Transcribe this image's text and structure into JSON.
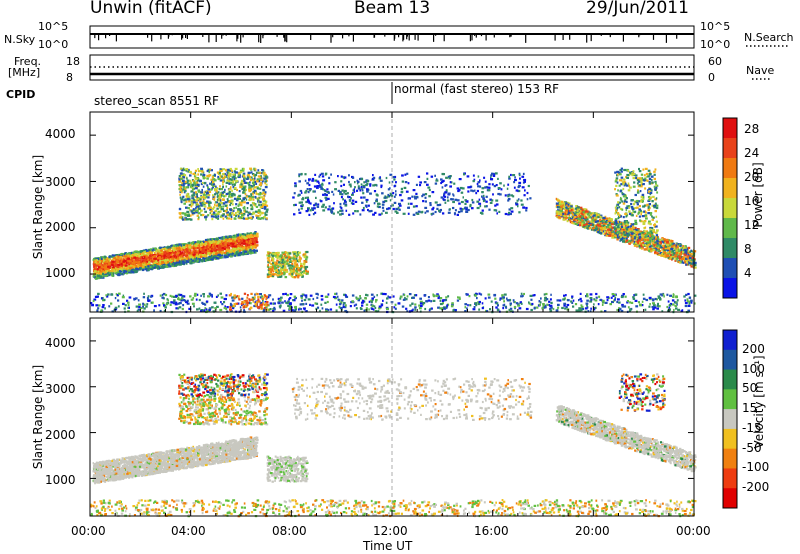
{
  "header": {
    "station": "Unwin (fitACF)",
    "beam": "Beam 13",
    "date": "29/Jun/2011"
  },
  "strips": {
    "nsky_label": "N.Sky",
    "nsky_ticks": [
      "10^5",
      "10^0"
    ],
    "nsearch_label": "N.Search",
    "nsearch_ticks": [
      "10^5",
      "10^0"
    ],
    "freq_label": "Freq.",
    "freq_unit": "[MHz]",
    "freq_ticks": [
      "18",
      "8"
    ],
    "nave_label": "Nave",
    "nave_ticks": [
      "60",
      "0"
    ],
    "cpid_label": "CPID",
    "cpid_segments": [
      {
        "name": "stereo_scan 8551 RF",
        "start_hour": 0
      },
      {
        "name": "normal (fast stereo) 153 RF",
        "start_hour": 12
      }
    ]
  },
  "chart_data": [
    {
      "type": "heatmap",
      "panel": "power",
      "ylabel": "Slant Range [km]",
      "xlabel": "Time UT",
      "x_range_hours": [
        0,
        24
      ],
      "ylim": [
        180,
        4500
      ],
      "y_ticks": [
        1000,
        2000,
        3000,
        4000
      ],
      "x_ticks": [
        "00:00",
        "04:00",
        "08:00",
        "12:00",
        "16:00",
        "20:00",
        "00:00"
      ],
      "colorbar": {
        "label": "Power [dB]",
        "ticks": [
          4,
          8,
          12,
          16,
          20,
          24,
          28
        ],
        "range": [
          0,
          30
        ],
        "colors": [
          "#0a14e6",
          "#1f4fb4",
          "#2f8a66",
          "#5fb84a",
          "#c8d83a",
          "#f0b21e",
          "#ef7a12",
          "#e8421a",
          "#e01010"
        ]
      },
      "regions": [
        {
          "name": "lower band",
          "hours": [
            0.2,
            6.5
          ],
          "range_km": [
            900,
            2000
          ]
        },
        {
          "name": "upper patches",
          "hours": [
            3.5,
            7.0
          ],
          "range_km": [
            2300,
            3300
          ]
        },
        {
          "name": "midday clutter",
          "hours": [
            8.0,
            17.5
          ],
          "range_km": [
            2300,
            3100
          ]
        },
        {
          "name": "evening band",
          "hours": [
            18.5,
            24.0
          ],
          "range_km": [
            1000,
            2500
          ]
        },
        {
          "name": "ground scatter",
          "hours": [
            7.0,
            8.6
          ],
          "range_km": [
            900,
            1500
          ]
        }
      ]
    },
    {
      "type": "heatmap",
      "panel": "velocity",
      "ylabel": "Slant Range [km]",
      "xlabel": "Time UT",
      "x_range_hours": [
        0,
        24
      ],
      "ylim": [
        180,
        4500
      ],
      "y_ticks": [
        1000,
        2000,
        3000,
        4000
      ],
      "x_ticks": [
        "00:00",
        "04:00",
        "08:00",
        "12:00",
        "16:00",
        "20:00",
        "00:00"
      ],
      "colorbar": {
        "label": "Velocity [m s⁻¹]",
        "ticks": [
          200,
          100,
          50,
          15,
          -15,
          -50,
          -100,
          -200
        ],
        "colors": [
          "#1020d0",
          "#1e58a0",
          "#2a8a4a",
          "#60c040",
          "#c8c8c0",
          "#f0c020",
          "#f08010",
          "#ee3c10",
          "#e00000"
        ]
      }
    }
  ]
}
